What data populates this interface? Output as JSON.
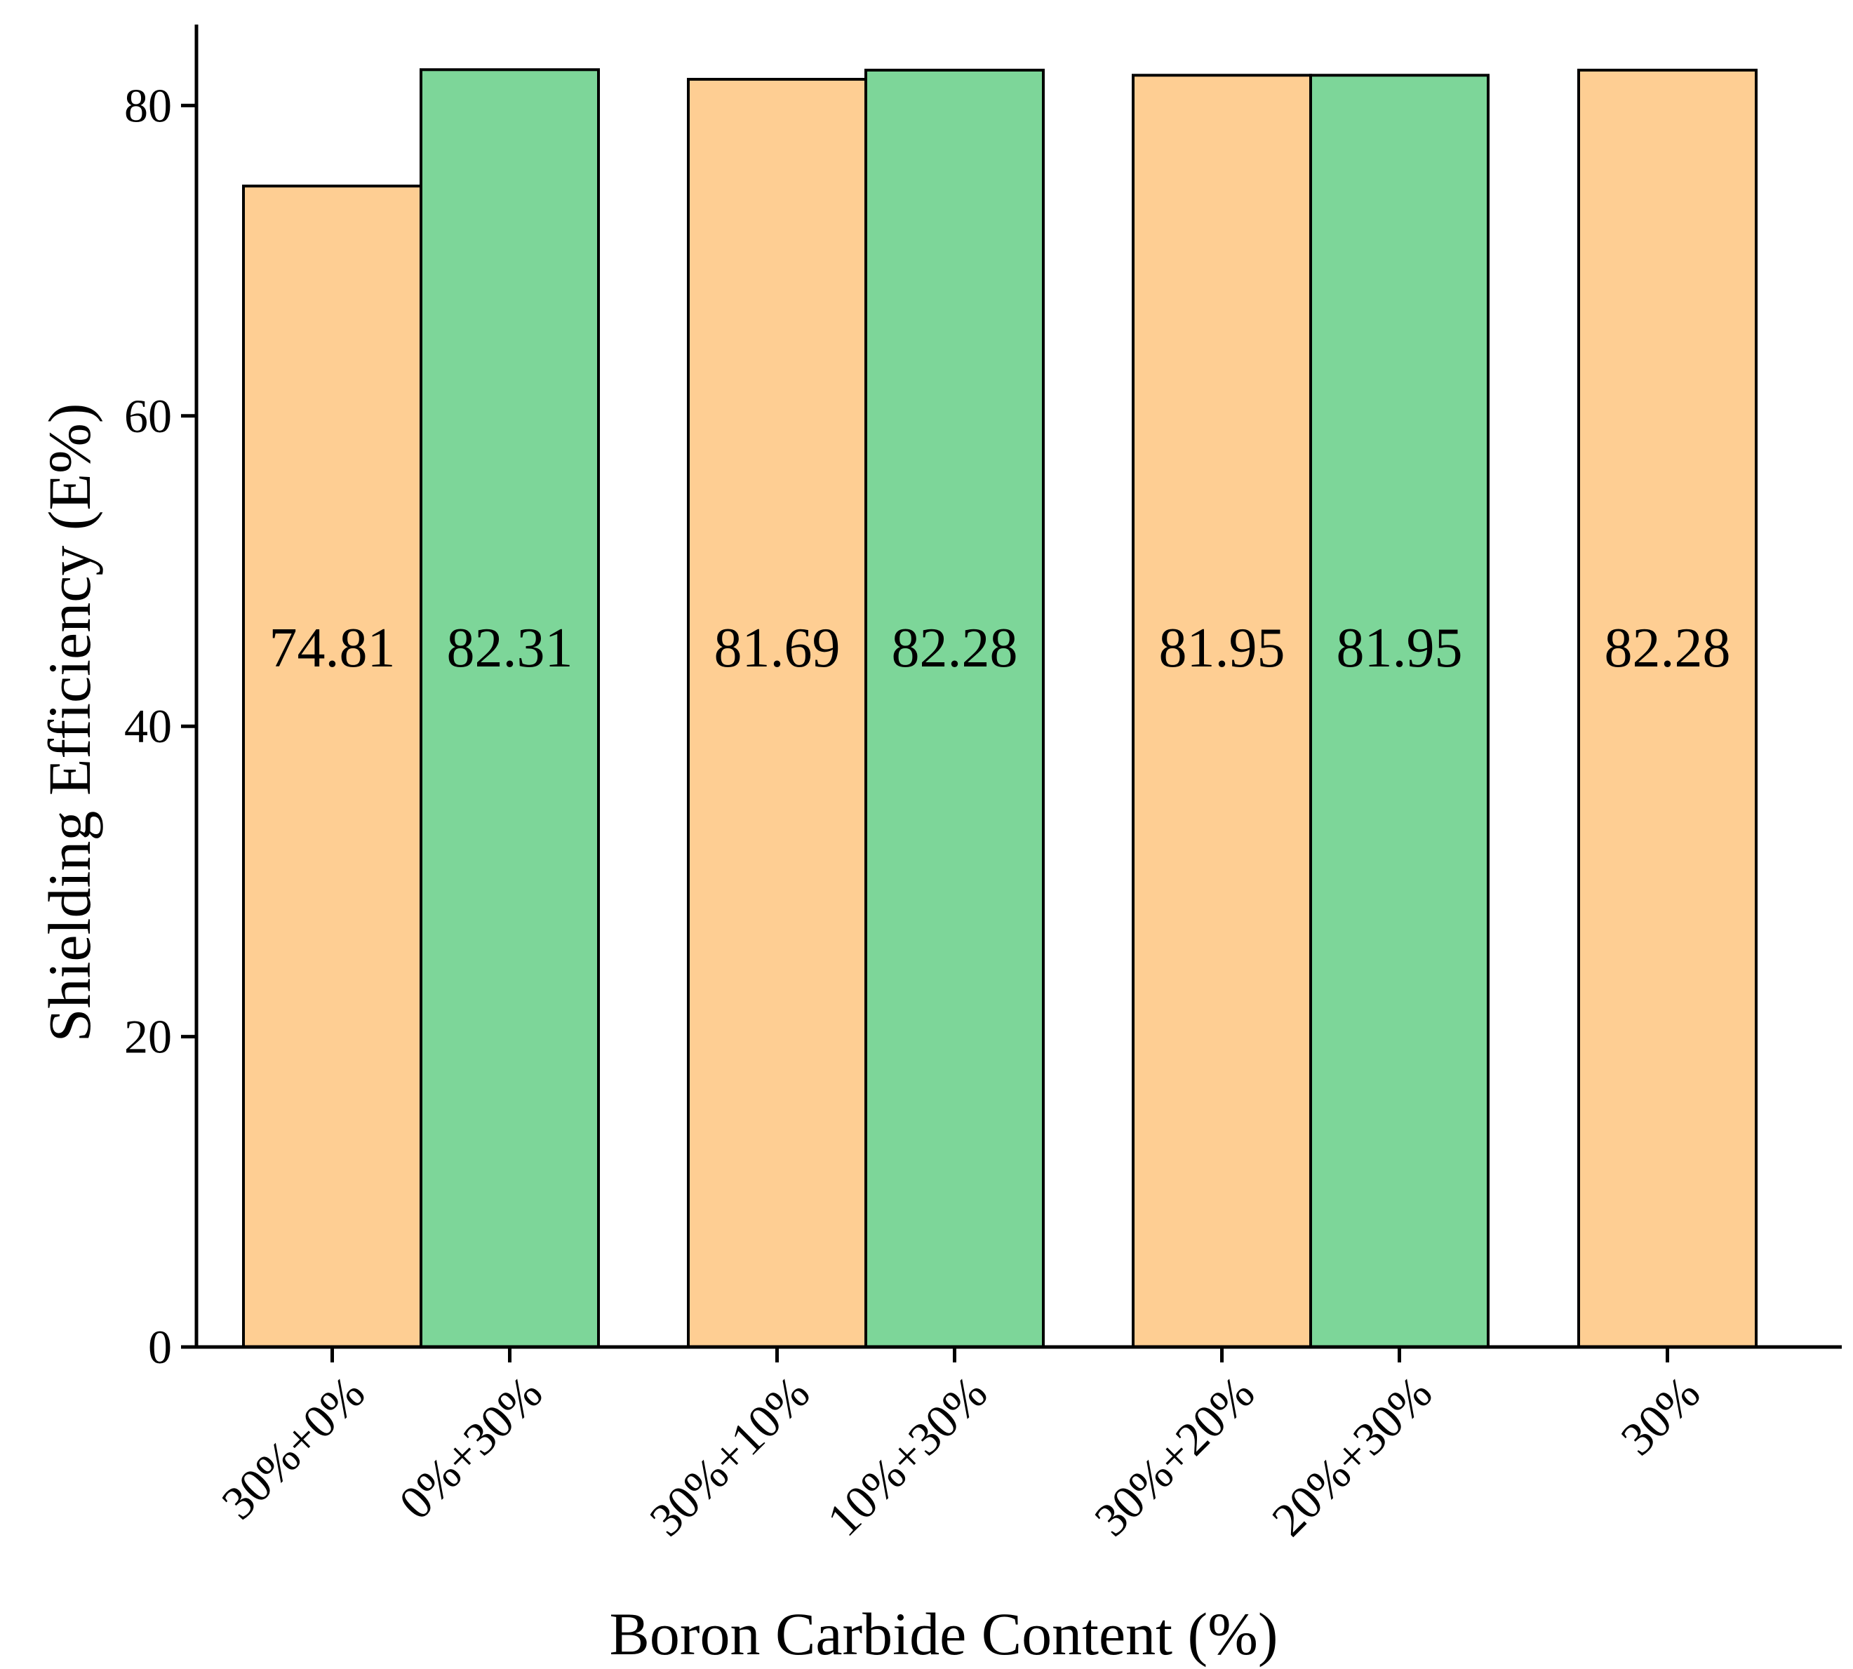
{
  "chart_data": {
    "type": "bar",
    "title": "",
    "xlabel": "Boron Carbide Content (%)",
    "ylabel": "Shielding Efficiency (E%)",
    "ylim": [
      0,
      85
    ],
    "yticks": [
      0,
      20,
      40,
      60,
      80
    ],
    "grid": false,
    "legend": "none",
    "categories": [
      "30%+0%",
      "0%+30%",
      "30%+10%",
      "10%+30%",
      "30%+20%",
      "20%+30%",
      "30%"
    ],
    "values": [
      74.81,
      82.31,
      81.69,
      82.28,
      81.95,
      81.95,
      82.28
    ],
    "data_labels": [
      "74.81",
      "82.31",
      "81.69",
      "82.28",
      "81.95",
      "81.95",
      "82.28"
    ],
    "bar_colors": [
      "#FECE93",
      "#7DD699",
      "#FECE93",
      "#7DD699",
      "#FECE93",
      "#7DD699",
      "#FECE93"
    ],
    "colors": {
      "orange": "#FECE93",
      "green": "#7DD699",
      "outline": "#000000"
    }
  }
}
